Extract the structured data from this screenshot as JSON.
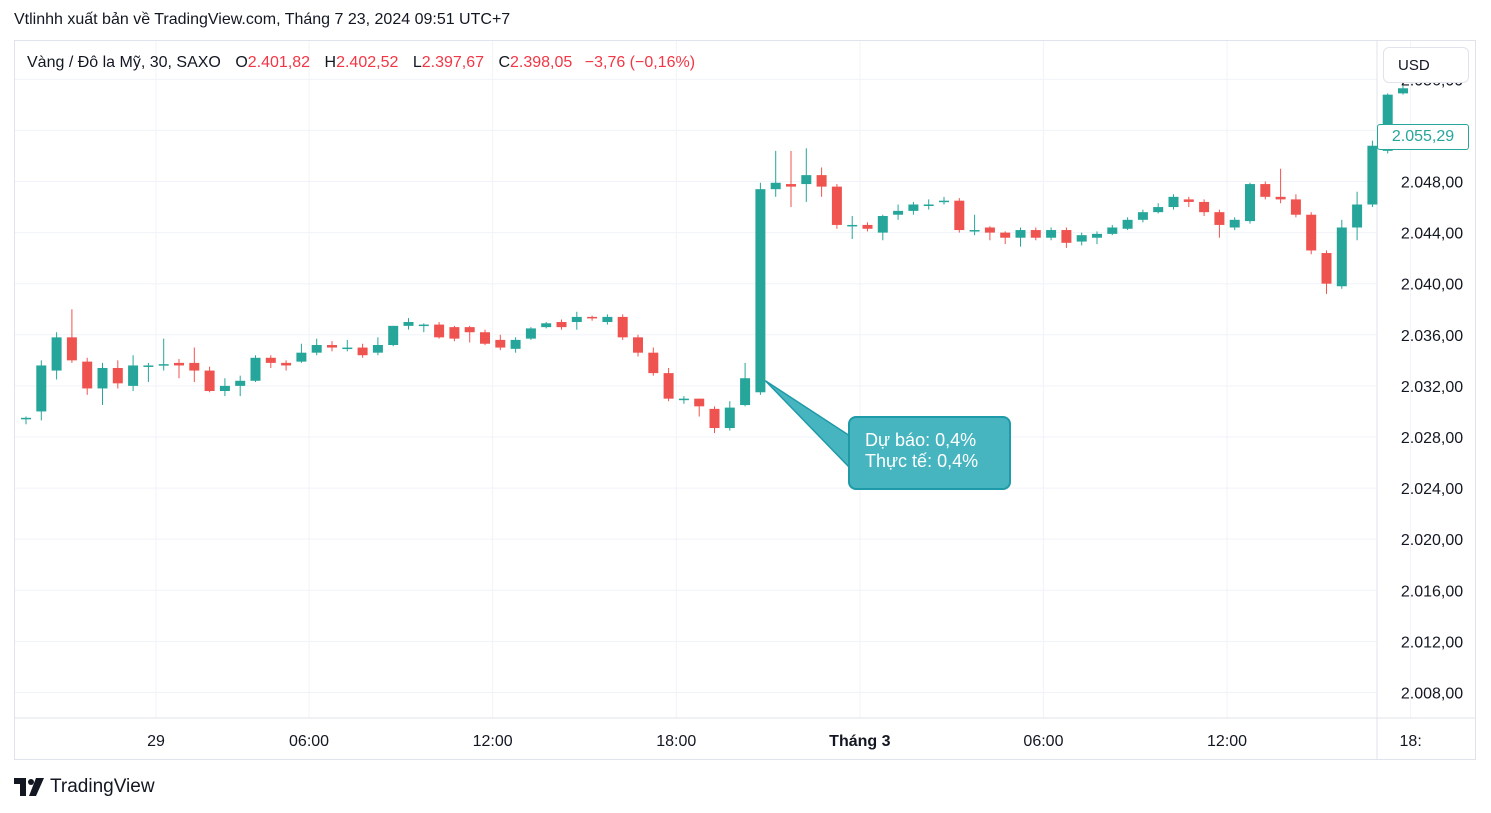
{
  "header": {
    "title": "Vtlinhh xuất bản về TradingView.com, Tháng 7 23, 2024 09:51 UTC+7"
  },
  "legend": {
    "symbol": "Vàng / Đô la Mỹ, 30, SAXO",
    "open_label": "O",
    "open": "2.401,82",
    "high_label": "H",
    "high": "2.402,52",
    "low_label": "L",
    "low": "2.397,67",
    "close_label": "C",
    "close": "2.398,05",
    "change": "−3,76 (−0,16%)"
  },
  "currency_button": "USD",
  "last_price_tag": "2.055,29",
  "callout": {
    "line1": "Dự báo: 0,4%",
    "line2": "Thực tế: 0,4%"
  },
  "footer": {
    "brand": "TradingView",
    "logo_icon": "tradingview-logo-icon"
  },
  "colors": {
    "up": "#26a69a",
    "down": "#ef5350",
    "grid": "#f0f3fa",
    "callout": "#47b5c0"
  },
  "chart_data": {
    "type": "candlestick",
    "ylim": [
      2006,
      2059
    ],
    "y_ticks": [
      "2.008,00",
      "2.012,00",
      "2.016,00",
      "2.020,00",
      "2.024,00",
      "2.028,00",
      "2.032,00",
      "2.036,00",
      "2.040,00",
      "2.044,00",
      "2.048,00",
      "2.052,00",
      "2.056,00"
    ],
    "y_tick_values": [
      2008,
      2012,
      2016,
      2020,
      2024,
      2028,
      2032,
      2036,
      2040,
      2044,
      2048,
      2052,
      2056
    ],
    "x_ticks": [
      {
        "label": "29",
        "index": 8.5,
        "bold": false
      },
      {
        "label": "06:00",
        "index": 18.5,
        "bold": false
      },
      {
        "label": "12:00",
        "index": 30.5,
        "bold": false
      },
      {
        "label": "18:00",
        "index": 42.5,
        "bold": false
      },
      {
        "label": "Tháng 3",
        "index": 54.5,
        "bold": true
      },
      {
        "label": "06:00",
        "index": 66.5,
        "bold": false
      },
      {
        "label": "12:00",
        "index": 78.5,
        "bold": false
      },
      {
        "label": "18:",
        "index": 90.5,
        "bold": false
      }
    ],
    "candles": [
      [
        2029.5,
        2029.5,
        2029.0,
        2029.6
      ],
      [
        2030.0,
        2033.6,
        2029.3,
        2034.0
      ],
      [
        2033.2,
        2035.8,
        2032.5,
        2036.2
      ],
      [
        2035.8,
        2034.0,
        2033.8,
        2038.0
      ],
      [
        2033.9,
        2031.8,
        2031.3,
        2034.2
      ],
      [
        2031.8,
        2033.4,
        2030.5,
        2033.8
      ],
      [
        2033.4,
        2032.2,
        2031.8,
        2034.0
      ],
      [
        2032.0,
        2033.6,
        2031.6,
        2034.4
      ],
      [
        2033.6,
        2033.6,
        2032.3,
        2033.8
      ],
      [
        2033.7,
        2033.7,
        2033.2,
        2035.7
      ],
      [
        2033.8,
        2033.6,
        2032.6,
        2034.1
      ],
      [
        2033.8,
        2033.2,
        2032.3,
        2035.0
      ],
      [
        2033.2,
        2031.6,
        2031.5,
        2033.5
      ],
      [
        2031.6,
        2032.0,
        2031.2,
        2032.6
      ],
      [
        2032.0,
        2032.4,
        2031.2,
        2032.8
      ],
      [
        2032.4,
        2034.2,
        2032.3,
        2034.4
      ],
      [
        2034.2,
        2033.8,
        2033.4,
        2034.4
      ],
      [
        2033.8,
        2033.6,
        2033.2,
        2034.0
      ],
      [
        2033.9,
        2034.6,
        2033.8,
        2035.3
      ],
      [
        2034.6,
        2035.2,
        2034.4,
        2035.7
      ],
      [
        2035.2,
        2035.0,
        2034.7,
        2035.5
      ],
      [
        2035.0,
        2035.0,
        2034.7,
        2035.6
      ],
      [
        2035.0,
        2034.4,
        2034.2,
        2035.3
      ],
      [
        2034.6,
        2035.2,
        2034.4,
        2035.8
      ],
      [
        2035.2,
        2036.7,
        2035.1,
        2036.7
      ],
      [
        2036.7,
        2037.0,
        2036.4,
        2037.3
      ],
      [
        2036.7,
        2036.8,
        2036.2,
        2036.9
      ],
      [
        2036.8,
        2035.8,
        2035.7,
        2037.0
      ],
      [
        2036.6,
        2035.7,
        2035.5,
        2036.7
      ],
      [
        2036.6,
        2036.2,
        2035.4,
        2036.7
      ],
      [
        2036.2,
        2035.3,
        2035.2,
        2036.4
      ],
      [
        2035.6,
        2035.0,
        2034.8,
        2036.0
      ],
      [
        2034.9,
        2035.6,
        2034.6,
        2035.8
      ],
      [
        2035.7,
        2036.5,
        2035.6,
        2036.6
      ],
      [
        2036.6,
        2036.9,
        2036.5,
        2037.0
      ],
      [
        2037.0,
        2036.6,
        2036.4,
        2037.2
      ],
      [
        2037.0,
        2037.4,
        2036.4,
        2037.8
      ],
      [
        2037.4,
        2037.3,
        2037.1,
        2037.5
      ],
      [
        2037.0,
        2037.4,
        2036.8,
        2037.6
      ],
      [
        2037.4,
        2035.8,
        2035.6,
        2037.6
      ],
      [
        2035.8,
        2034.6,
        2034.3,
        2036.0
      ],
      [
        2034.6,
        2033.0,
        2032.8,
        2035.0
      ],
      [
        2033.0,
        2031.0,
        2030.8,
        2033.4
      ],
      [
        2031.0,
        2031.0,
        2030.6,
        2031.2
      ],
      [
        2031.0,
        2030.4,
        2029.6,
        2031.0
      ],
      [
        2030.2,
        2028.7,
        2028.3,
        2030.4
      ],
      [
        2028.7,
        2030.3,
        2028.5,
        2030.8
      ],
      [
        2030.5,
        2032.6,
        2030.4,
        2033.8
      ],
      [
        2031.5,
        2047.4,
        2031.3,
        2047.9
      ],
      [
        2047.4,
        2047.9,
        2046.8,
        2050.4
      ],
      [
        2047.8,
        2047.6,
        2046.0,
        2050.4
      ],
      [
        2047.8,
        2048.5,
        2046.4,
        2050.6
      ],
      [
        2048.5,
        2047.6,
        2046.8,
        2049.1
      ],
      [
        2047.6,
        2044.6,
        2044.3,
        2047.8
      ],
      [
        2044.6,
        2044.6,
        2043.5,
        2045.3
      ],
      [
        2044.6,
        2044.3,
        2044.1,
        2044.8
      ],
      [
        2044.0,
        2045.3,
        2043.4,
        2045.4
      ],
      [
        2045.4,
        2045.7,
        2045.0,
        2046.2
      ],
      [
        2045.7,
        2046.2,
        2045.4,
        2046.4
      ],
      [
        2046.2,
        2046.2,
        2045.8,
        2046.6
      ],
      [
        2046.5,
        2046.5,
        2046.2,
        2046.8
      ],
      [
        2046.5,
        2044.2,
        2044.0,
        2046.7
      ],
      [
        2044.1,
        2044.2,
        2043.8,
        2045.4
      ],
      [
        2044.4,
        2044.0,
        2043.4,
        2044.5
      ],
      [
        2044.0,
        2043.6,
        2043.1,
        2044.1
      ],
      [
        2043.6,
        2044.2,
        2042.9,
        2044.4
      ],
      [
        2044.2,
        2043.6,
        2043.4,
        2044.4
      ],
      [
        2043.6,
        2044.2,
        2043.4,
        2044.4
      ],
      [
        2044.2,
        2043.2,
        2042.8,
        2044.4
      ],
      [
        2043.3,
        2043.8,
        2043.0,
        2044.0
      ],
      [
        2043.6,
        2043.9,
        2043.1,
        2044.1
      ],
      [
        2043.9,
        2044.4,
        2043.8,
        2044.6
      ],
      [
        2044.3,
        2045.0,
        2044.2,
        2045.2
      ],
      [
        2045.0,
        2045.6,
        2044.8,
        2045.8
      ],
      [
        2045.6,
        2046.0,
        2045.5,
        2046.3
      ],
      [
        2046.0,
        2046.8,
        2045.8,
        2047.0
      ],
      [
        2046.6,
        2046.4,
        2046.0,
        2046.8
      ],
      [
        2046.4,
        2045.6,
        2045.3,
        2046.6
      ],
      [
        2045.6,
        2044.6,
        2043.6,
        2045.8
      ],
      [
        2044.4,
        2045.0,
        2044.2,
        2045.2
      ],
      [
        2044.9,
        2047.8,
        2044.7,
        2047.9
      ],
      [
        2047.8,
        2046.8,
        2046.6,
        2048.0
      ],
      [
        2046.8,
        2046.6,
        2046.3,
        2049.0
      ],
      [
        2046.6,
        2045.4,
        2045.2,
        2047.0
      ],
      [
        2045.4,
        2042.6,
        2042.3,
        2045.6
      ],
      [
        2042.4,
        2040.0,
        2039.2,
        2042.6
      ],
      [
        2039.8,
        2044.4,
        2039.6,
        2045.0
      ],
      [
        2044.4,
        2046.2,
        2043.4,
        2047.2
      ],
      [
        2046.2,
        2050.8,
        2046.0,
        2051.2
      ],
      [
        2050.4,
        2054.8,
        2050.2,
        2054.9
      ],
      [
        2054.9,
        2055.3,
        2054.8,
        2055.5
      ]
    ]
  }
}
